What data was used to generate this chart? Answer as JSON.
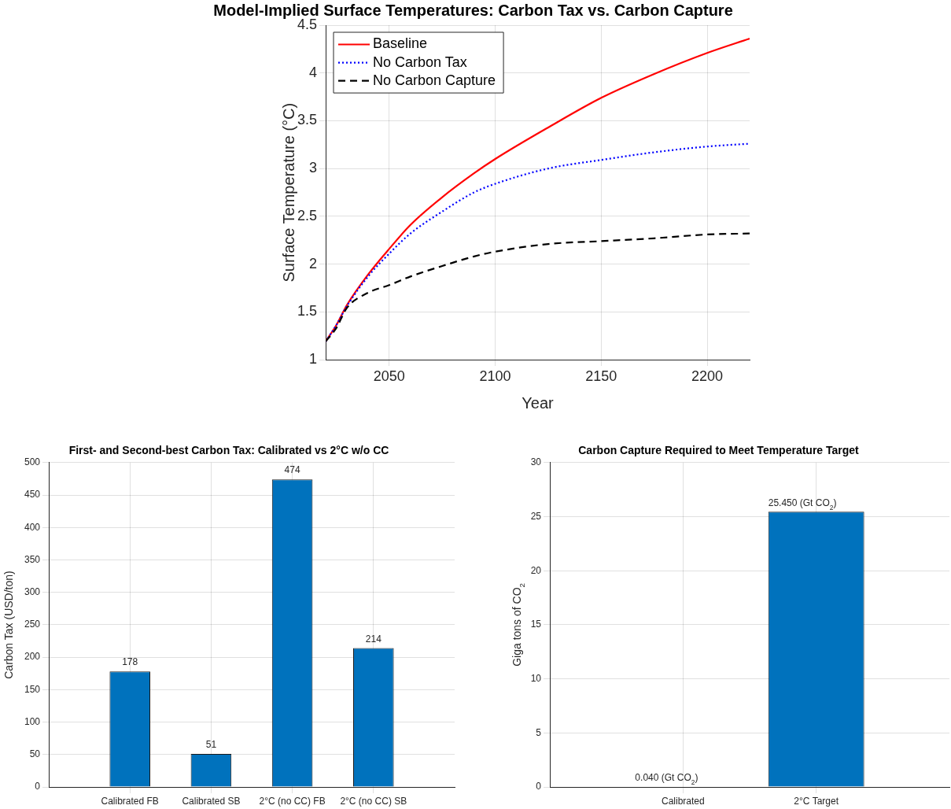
{
  "chart_data": [
    {
      "type": "line",
      "title": "Model-Implied Surface Temperatures: Carbon Tax vs. Carbon Capture",
      "xlabel": "Year",
      "ylabel": "Surface Temperature (°C)",
      "x": [
        2020,
        2025,
        2030,
        2040,
        2050,
        2060,
        2075,
        2090,
        2100,
        2125,
        2150,
        2175,
        2200,
        2220
      ],
      "series": [
        {
          "name": "Baseline",
          "color": "#ff0000",
          "line_style": "solid",
          "values": [
            1.19,
            1.36,
            1.57,
            1.89,
            2.16,
            2.41,
            2.7,
            2.95,
            3.1,
            3.43,
            3.74,
            3.99,
            4.21,
            4.36
          ]
        },
        {
          "name": "No Carbon Tax",
          "color": "#0000ff",
          "line_style": "dotted",
          "values": [
            1.19,
            1.36,
            1.56,
            1.87,
            2.11,
            2.32,
            2.55,
            2.75,
            2.84,
            3.0,
            3.09,
            3.17,
            3.23,
            3.26
          ]
        },
        {
          "name": "No Carbon Capture",
          "color": "#000000",
          "line_style": "dashed",
          "values": [
            1.19,
            1.33,
            1.54,
            1.7,
            1.78,
            1.87,
            1.98,
            2.08,
            2.13,
            2.21,
            2.24,
            2.27,
            2.31,
            2.32
          ]
        }
      ],
      "xlim": [
        2020,
        2220
      ],
      "xticks": [
        2050,
        2100,
        2150,
        2200
      ],
      "ylim": [
        1,
        4.5
      ],
      "yticks": [
        1,
        1.5,
        2,
        2.5,
        3,
        3.5,
        4,
        4.5
      ],
      "grid": true,
      "legend": "top left"
    },
    {
      "type": "bar",
      "title": "First- and Second-best Carbon Tax: Calibrated vs 2°C w/o CC",
      "ylabel": "Carbon Tax (USD/ton)",
      "categories": [
        "Calibrated FB",
        "Calibrated SB",
        "2°C (no CC) FB",
        "2°C (no CC) SB"
      ],
      "values": [
        178,
        51,
        474,
        214
      ],
      "color": "#0072bd",
      "ylim": [
        0,
        500
      ],
      "yticks": [
        0,
        50,
        100,
        150,
        200,
        250,
        300,
        350,
        400,
        450,
        500
      ],
      "grid": true,
      "data_labels": true
    },
    {
      "type": "bar",
      "title": "Carbon Capture Required to Meet Temperature Target",
      "ylabel": "Giga tons of CO$_{2}$",
      "categories": [
        "Calibrated",
        "2°C Target"
      ],
      "values": [
        0.04,
        25.45
      ],
      "value_labels": [
        "0.040 (Gt CO$_{2}$)",
        "25.450 (Gt CO$_{2}$)"
      ],
      "color": "#0072bd",
      "ylim": [
        0,
        30
      ],
      "yticks": [
        0,
        5,
        10,
        15,
        20,
        25,
        30
      ],
      "grid": true
    }
  ]
}
